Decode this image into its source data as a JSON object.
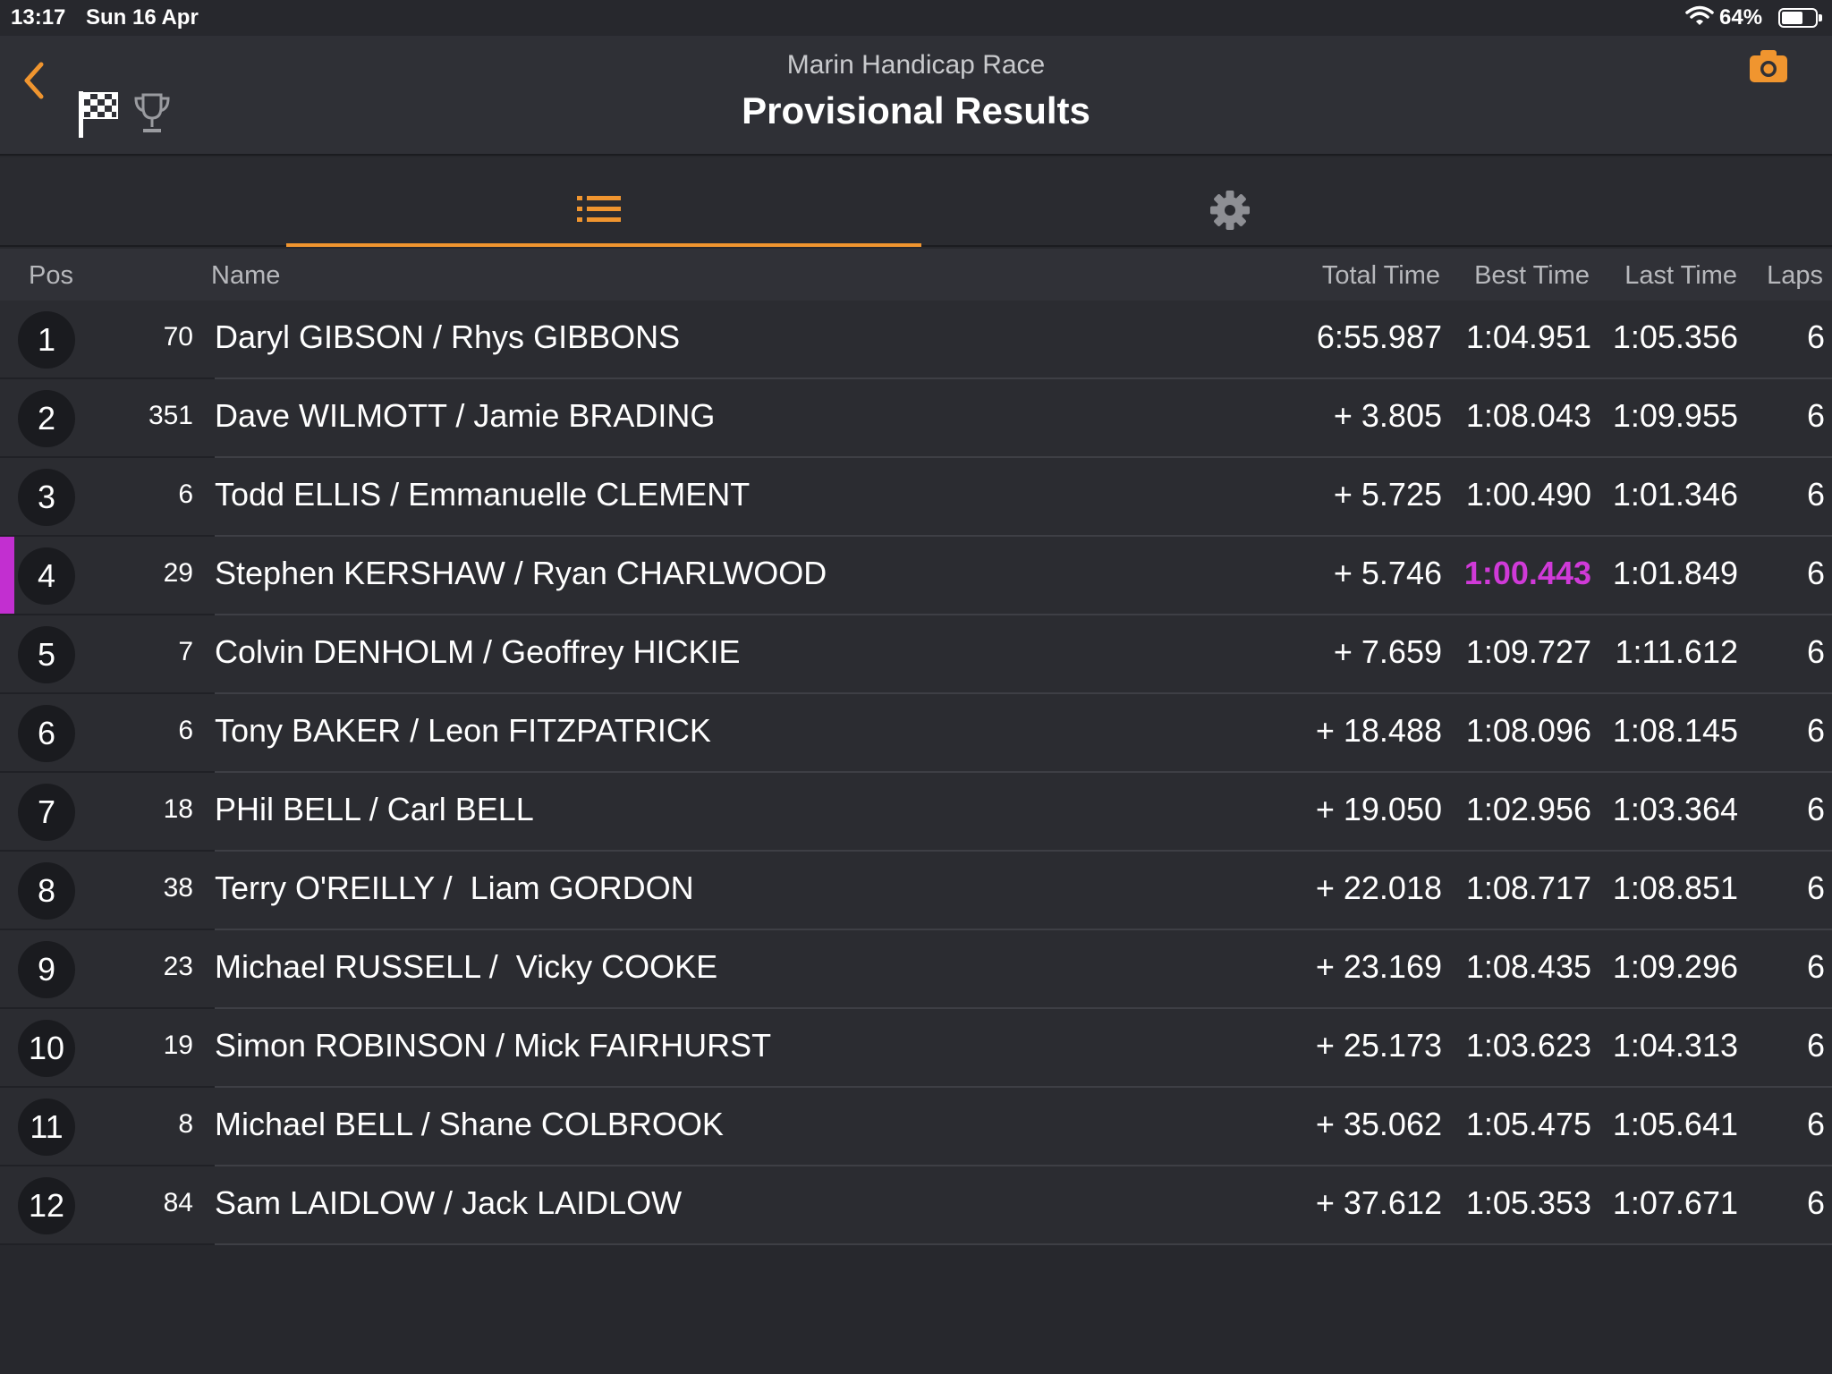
{
  "status_bar": {
    "time": "13:17",
    "date": "Sun 16 Apr",
    "battery_text": "64%",
    "battery_level": 0.64
  },
  "header": {
    "subtitle": "Marin Handicap Race",
    "title": "Provisional Results"
  },
  "tabs": [
    {
      "name": "results-list",
      "icon": "list-icon",
      "active": true
    },
    {
      "name": "settings",
      "icon": "gear-icon",
      "active": false
    }
  ],
  "columns": {
    "pos": "Pos",
    "name": "Name",
    "total_time": "Total Time",
    "best_time": "Best Time",
    "last_time": "Last Time",
    "laps": "Laps"
  },
  "colors": {
    "accent": "#f0952f",
    "fastest": "#d03ad8"
  },
  "rows": [
    {
      "pos": "1",
      "car": "70",
      "name": "Daryl GIBSON / Rhys GIBBONS",
      "total": "6:55.987",
      "best": "1:04.951",
      "last": "1:05.356",
      "laps": "6",
      "highlight": false
    },
    {
      "pos": "2",
      "car": "351",
      "name": "Dave WILMOTT / Jamie BRADING",
      "total": "+ 3.805",
      "best": "1:08.043",
      "last": "1:09.955",
      "laps": "6",
      "highlight": false
    },
    {
      "pos": "3",
      "car": "6",
      "name": "Todd ELLIS / Emmanuelle CLEMENT",
      "total": "+ 5.725",
      "best": "1:00.490",
      "last": "1:01.346",
      "laps": "6",
      "highlight": false
    },
    {
      "pos": "4",
      "car": "29",
      "name": "Stephen KERSHAW / Ryan CHARLWOOD",
      "total": "+ 5.746",
      "best": "1:00.443",
      "last": "1:01.849",
      "laps": "6",
      "highlight": true
    },
    {
      "pos": "5",
      "car": "7",
      "name": "Colvin DENHOLM / Geoffrey HICKIE",
      "total": "+ 7.659",
      "best": "1:09.727",
      "last": "1:11.612",
      "laps": "6",
      "highlight": false
    },
    {
      "pos": "6",
      "car": "6",
      "name": "Tony BAKER / Leon FITZPATRICK",
      "total": "+ 18.488",
      "best": "1:08.096",
      "last": "1:08.145",
      "laps": "6",
      "highlight": false
    },
    {
      "pos": "7",
      "car": "18",
      "name": "PHil BELL / Carl BELL",
      "total": "+ 19.050",
      "best": "1:02.956",
      "last": "1:03.364",
      "laps": "6",
      "highlight": false
    },
    {
      "pos": "8",
      "car": "38",
      "name": "Terry O'REILLY /  Liam GORDON",
      "total": "+ 22.018",
      "best": "1:08.717",
      "last": "1:08.851",
      "laps": "6",
      "highlight": false
    },
    {
      "pos": "9",
      "car": "23",
      "name": "Michael RUSSELL /  Vicky COOKE",
      "total": "+ 23.169",
      "best": "1:08.435",
      "last": "1:09.296",
      "laps": "6",
      "highlight": false
    },
    {
      "pos": "10",
      "car": "19",
      "name": "Simon ROBINSON / Mick FAIRHURST",
      "total": "+ 25.173",
      "best": "1:03.623",
      "last": "1:04.313",
      "laps": "6",
      "highlight": false
    },
    {
      "pos": "11",
      "car": "8",
      "name": "Michael BELL / Shane COLBROOK",
      "total": "+ 35.062",
      "best": "1:05.475",
      "last": "1:05.641",
      "laps": "6",
      "highlight": false
    },
    {
      "pos": "12",
      "car": "84",
      "name": "Sam LAIDLOW / Jack LAIDLOW",
      "total": "+ 37.612",
      "best": "1:05.353",
      "last": "1:07.671",
      "laps": "6",
      "highlight": false
    }
  ]
}
